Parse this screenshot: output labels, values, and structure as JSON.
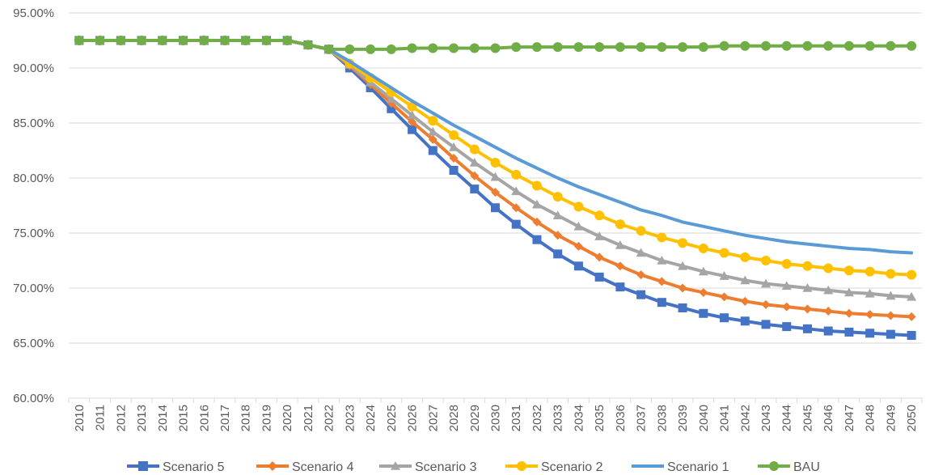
{
  "chart_data": {
    "type": "line",
    "title": "",
    "xlabel": "",
    "ylabel": "",
    "ylim": [
      0.6,
      0.95
    ],
    "y_ticks": [
      0.6,
      0.65,
      0.7,
      0.75,
      0.8,
      0.85,
      0.9,
      0.95
    ],
    "y_tick_labels": [
      "60.00%",
      "65.00%",
      "70.00%",
      "75.00%",
      "80.00%",
      "85.00%",
      "90.00%",
      "95.00%"
    ],
    "grid": true,
    "legend_position": "bottom",
    "categories": [
      "2010",
      "2011",
      "2012",
      "2013",
      "2014",
      "2015",
      "2016",
      "2017",
      "2018",
      "2019",
      "2020",
      "2021",
      "2022",
      "2023",
      "2024",
      "2025",
      "2026",
      "2027",
      "2028",
      "2029",
      "2030",
      "2031",
      "2032",
      "2033",
      "2034",
      "2035",
      "2036",
      "2037",
      "2038",
      "2039",
      "2040",
      "2041",
      "2042",
      "2043",
      "2044",
      "2045",
      "2046",
      "2047",
      "2048",
      "2049",
      "2050"
    ],
    "series": [
      {
        "name": "Scenario 5",
        "color": "#4472C4",
        "marker": "square",
        "values": [
          0.925,
          0.925,
          0.925,
          0.925,
          0.925,
          0.925,
          0.925,
          0.925,
          0.925,
          0.925,
          0.925,
          0.921,
          0.917,
          0.9,
          0.882,
          0.863,
          0.844,
          0.825,
          0.807,
          0.79,
          0.773,
          0.758,
          0.744,
          0.731,
          0.72,
          0.71,
          0.701,
          0.694,
          0.687,
          0.682,
          0.677,
          0.673,
          0.67,
          0.667,
          0.665,
          0.663,
          0.661,
          0.66,
          0.659,
          0.658,
          0.657
        ]
      },
      {
        "name": "Scenario 4",
        "color": "#ED7D31",
        "marker": "diamond",
        "values": [
          0.925,
          0.925,
          0.925,
          0.925,
          0.925,
          0.925,
          0.925,
          0.925,
          0.925,
          0.925,
          0.925,
          0.921,
          0.917,
          0.902,
          0.885,
          0.868,
          0.851,
          0.835,
          0.818,
          0.802,
          0.787,
          0.773,
          0.76,
          0.748,
          0.738,
          0.728,
          0.72,
          0.712,
          0.706,
          0.7,
          0.696,
          0.692,
          0.688,
          0.685,
          0.683,
          0.681,
          0.679,
          0.677,
          0.676,
          0.675,
          0.674
        ]
      },
      {
        "name": "Scenario 3",
        "color": "#A5A5A5",
        "marker": "triangle",
        "values": [
          0.925,
          0.925,
          0.925,
          0.925,
          0.925,
          0.925,
          0.925,
          0.925,
          0.925,
          0.925,
          0.925,
          0.921,
          0.917,
          0.903,
          0.887,
          0.872,
          0.857,
          0.842,
          0.828,
          0.814,
          0.801,
          0.788,
          0.776,
          0.766,
          0.756,
          0.747,
          0.739,
          0.732,
          0.725,
          0.72,
          0.715,
          0.711,
          0.707,
          0.704,
          0.702,
          0.7,
          0.698,
          0.696,
          0.695,
          0.693,
          0.692
        ]
      },
      {
        "name": "Scenario 2",
        "color": "#FFC000",
        "marker": "circle",
        "values": [
          0.925,
          0.925,
          0.925,
          0.925,
          0.925,
          0.925,
          0.925,
          0.925,
          0.925,
          0.925,
          0.925,
          0.921,
          0.917,
          0.904,
          0.891,
          0.878,
          0.865,
          0.852,
          0.839,
          0.826,
          0.814,
          0.803,
          0.793,
          0.783,
          0.774,
          0.766,
          0.758,
          0.752,
          0.746,
          0.741,
          0.736,
          0.732,
          0.728,
          0.725,
          0.722,
          0.72,
          0.718,
          0.716,
          0.715,
          0.713,
          0.712
        ]
      },
      {
        "name": "Scenario 1",
        "color": "#5B9BD5",
        "marker": "none",
        "values": [
          0.925,
          0.925,
          0.925,
          0.925,
          0.925,
          0.925,
          0.925,
          0.925,
          0.925,
          0.925,
          0.925,
          0.921,
          0.917,
          0.906,
          0.894,
          0.882,
          0.87,
          0.859,
          0.848,
          0.838,
          0.828,
          0.818,
          0.809,
          0.8,
          0.792,
          0.785,
          0.778,
          0.771,
          0.766,
          0.76,
          0.756,
          0.752,
          0.748,
          0.745,
          0.742,
          0.74,
          0.738,
          0.736,
          0.735,
          0.733,
          0.732
        ]
      },
      {
        "name": "BAU",
        "color": "#70AD47",
        "marker": "circle",
        "values": [
          0.925,
          0.925,
          0.925,
          0.925,
          0.925,
          0.925,
          0.925,
          0.925,
          0.925,
          0.925,
          0.925,
          0.921,
          0.917,
          0.917,
          0.917,
          0.917,
          0.918,
          0.918,
          0.918,
          0.918,
          0.918,
          0.919,
          0.919,
          0.919,
          0.919,
          0.919,
          0.919,
          0.919,
          0.919,
          0.919,
          0.919,
          0.92,
          0.92,
          0.92,
          0.92,
          0.92,
          0.92,
          0.92,
          0.92,
          0.92,
          0.92
        ]
      }
    ],
    "legend_order": [
      "Scenario 5",
      "Scenario 4",
      "Scenario 3",
      "Scenario 2",
      "Scenario 1",
      "BAU"
    ]
  }
}
